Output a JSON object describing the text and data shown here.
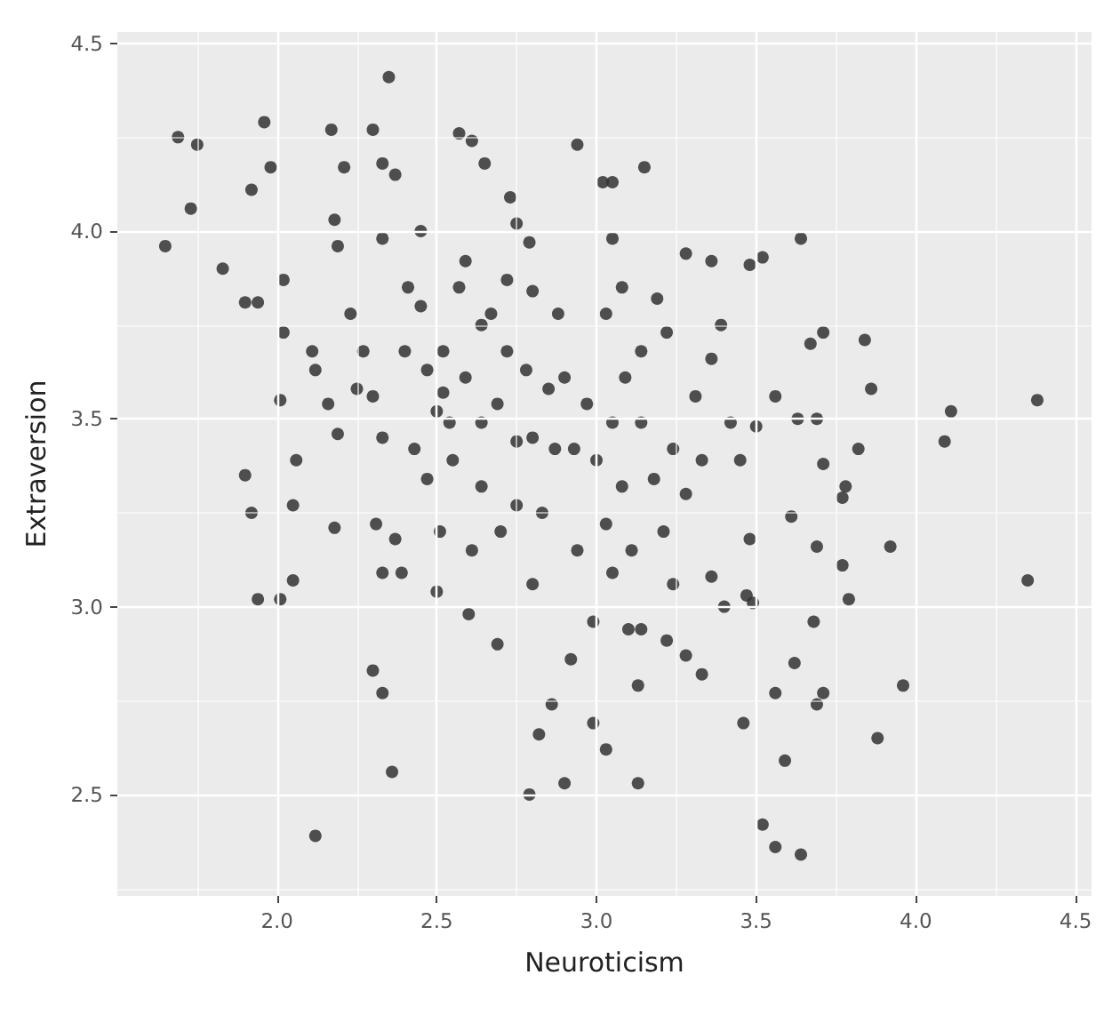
{
  "chart_data": {
    "type": "scatter",
    "xlabel": "Neuroticism",
    "ylabel": "Extraversion",
    "xlim": [
      1.5,
      4.55
    ],
    "ylim": [
      2.23,
      4.53
    ],
    "xticks": [
      {
        "value": 2,
        "label": "2.0"
      },
      2.5,
      {
        "value": 3,
        "label": "3.0"
      },
      3.5,
      {
        "value": 4,
        "label": "4.0"
      },
      4.5
    ],
    "yticks": [
      2.5,
      {
        "value": 3,
        "label": "3.0"
      },
      3.5,
      {
        "value": 4,
        "label": "4.0"
      },
      4.5
    ],
    "grid": true,
    "marker": "circle",
    "series": [
      {
        "color": "#333333",
        "x": [
          1.65,
          1.69,
          1.75,
          1.73,
          1.83,
          1.96,
          1.92,
          1.98,
          1.9,
          1.94,
          1.9,
          1.92,
          1.94,
          2.01,
          2.05,
          2.05,
          2.02,
          2.02,
          2.01,
          2.06,
          2.12,
          2.17,
          2.21,
          2.18,
          2.19,
          2.3,
          2.35,
          2.33,
          2.37,
          2.33,
          2.45,
          2.3,
          2.33,
          2.36,
          2.18,
          2.19,
          2.25,
          2.33,
          2.31,
          2.37,
          2.39,
          2.33,
          2.4,
          2.47,
          2.45,
          2.41,
          2.5,
          2.54,
          2.57,
          2.57,
          2.61,
          2.65,
          2.59,
          2.52,
          2.51,
          2.5,
          2.6,
          2.69,
          2.64,
          2.7,
          2.73,
          2.75,
          2.79,
          2.67,
          2.72,
          2.78,
          2.85,
          2.8,
          2.87,
          2.83,
          2.8,
          2.82,
          2.79,
          2.9,
          2.86,
          2.92,
          2.94,
          3.02,
          3.05,
          3.15,
          3.05,
          3.03,
          2.97,
          3.05,
          3.0,
          3.08,
          3.03,
          3.11,
          2.99,
          2.99,
          3.03,
          3.13,
          3.13,
          3.1,
          3.14,
          3.24,
          3.22,
          3.28,
          3.33,
          3.24,
          3.31,
          3.28,
          3.36,
          3.22,
          3.14,
          3.36,
          3.39,
          3.42,
          3.36,
          3.4,
          3.47,
          3.48,
          3.49,
          3.45,
          3.5,
          3.52,
          3.56,
          3.46,
          3.56,
          3.59,
          3.62,
          3.64,
          3.48,
          3.52,
          3.64,
          3.56,
          3.63,
          3.69,
          3.71,
          3.67,
          3.71,
          3.77,
          3.78,
          3.61,
          3.69,
          3.77,
          3.68,
          3.79,
          3.71,
          3.69,
          3.82,
          3.84,
          3.86,
          3.88,
          3.92,
          3.96,
          4.09,
          4.11,
          4.35,
          4.38,
          2.52,
          2.59,
          2.64,
          2.55,
          2.69,
          2.75,
          2.9,
          2.93,
          3.09,
          3.14,
          3.18,
          2.88,
          2.8,
          2.64,
          2.72,
          2.47,
          2.43,
          2.3,
          2.23,
          2.27,
          2.11,
          2.16,
          2.12,
          3.05,
          2.94,
          2.75,
          2.61,
          3.21,
          3.28,
          3.33,
          3.19,
          3.08
        ],
        "values": [
          3.96,
          4.25,
          4.23,
          4.06,
          3.9,
          4.29,
          4.11,
          4.17,
          3.81,
          3.81,
          3.35,
          3.25,
          3.02,
          3.02,
          3.07,
          3.27,
          3.87,
          3.73,
          3.55,
          3.39,
          2.39,
          4.27,
          4.17,
          4.03,
          3.96,
          4.27,
          4.41,
          4.18,
          4.15,
          3.98,
          4.0,
          2.83,
          2.77,
          2.56,
          3.21,
          3.46,
          3.58,
          3.45,
          3.22,
          3.18,
          3.09,
          3.09,
          3.68,
          3.63,
          3.8,
          3.85,
          3.52,
          3.49,
          3.85,
          4.26,
          4.24,
          4.18,
          3.92,
          3.57,
          3.2,
          3.04,
          2.98,
          2.9,
          3.32,
          3.2,
          4.09,
          4.02,
          3.97,
          3.78,
          3.68,
          3.63,
          3.58,
          3.45,
          3.42,
          3.25,
          3.06,
          2.66,
          2.5,
          2.53,
          2.74,
          2.86,
          4.23,
          4.13,
          4.13,
          4.17,
          3.98,
          3.78,
          3.54,
          3.49,
          3.39,
          3.32,
          3.22,
          3.15,
          2.96,
          2.69,
          2.62,
          2.53,
          2.79,
          2.94,
          2.94,
          3.06,
          2.91,
          2.87,
          2.82,
          3.42,
          3.56,
          3.94,
          3.92,
          3.73,
          3.68,
          3.66,
          3.75,
          3.49,
          3.08,
          3.0,
          3.03,
          3.18,
          3.01,
          3.39,
          3.48,
          2.42,
          2.36,
          2.69,
          2.77,
          2.59,
          2.85,
          2.34,
          3.91,
          3.93,
          3.98,
          3.56,
          3.5,
          3.5,
          3.73,
          3.7,
          3.38,
          3.29,
          3.32,
          3.24,
          3.16,
          3.11,
          2.96,
          3.02,
          2.77,
          2.74,
          3.42,
          3.71,
          3.58,
          2.65,
          3.16,
          2.79,
          3.44,
          3.52,
          3.07,
          3.55,
          3.68,
          3.61,
          3.49,
          3.39,
          3.54,
          3.44,
          3.61,
          3.42,
          3.61,
          3.49,
          3.34,
          3.78,
          3.84,
          3.75,
          3.87,
          3.34,
          3.42,
          3.56,
          3.78,
          3.68,
          3.68,
          3.54,
          3.63,
          3.09,
          3.15,
          3.27,
          3.15,
          3.2,
          3.3,
          3.39,
          3.82,
          3.85
        ]
      }
    ]
  }
}
